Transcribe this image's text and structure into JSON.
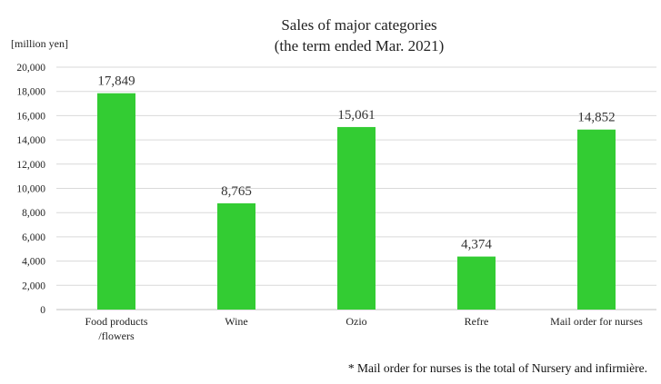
{
  "chart_data": {
    "type": "bar",
    "title": [
      "Sales of major categories",
      "(the term ended Mar. 2021)"
    ],
    "ylabel": "[million yen]",
    "xlabel": "",
    "categories": [
      [
        "Food products",
        "/flowers"
      ],
      [
        "Wine"
      ],
      [
        "Ozio"
      ],
      [
        "Refre"
      ],
      [
        "Mail order for nurses"
      ]
    ],
    "values": [
      17849,
      8765,
      15061,
      4374,
      14852
    ],
    "value_labels": [
      "17,849",
      "8,765",
      "15,061",
      "4,374",
      "14,852"
    ],
    "ylim": [
      0,
      20000
    ],
    "yticks": [
      0,
      2000,
      4000,
      6000,
      8000,
      10000,
      12000,
      14000,
      16000,
      18000,
      20000
    ],
    "ytick_labels": [
      "0",
      "2,000",
      "4,000",
      "6,000",
      "8,000",
      "10,000",
      "12,000",
      "14,000",
      "16,000",
      "18,000",
      "20,000"
    ],
    "grid": true,
    "legend": "none",
    "bar_color": "#33cc33",
    "footnote": "* Mail order for nurses is the total of Nursery and infirmière."
  }
}
